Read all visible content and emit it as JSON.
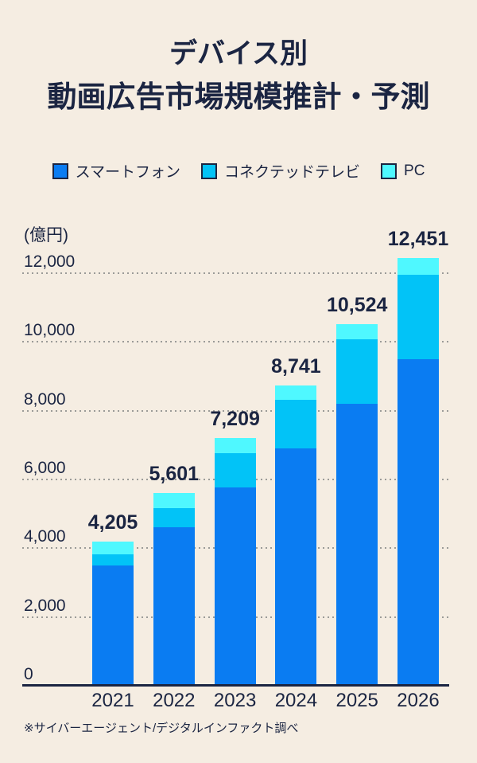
{
  "title": {
    "line1": "デバイス別",
    "line2": "動画広告市場規模推計・予測"
  },
  "footnote": "※サイバーエージェント/デジタルインファクト調べ",
  "colors": {
    "background": "#F5EDE2",
    "text": "#1B2542",
    "gridline": "#9B9B98",
    "smartphone": "#0A7CF2",
    "connected_tv": "#02C3F7",
    "pc": "#4FF8FF"
  },
  "chart_data": {
    "type": "bar",
    "stacked": true,
    "title": "デバイス別 動画広告市場規模推計・予測",
    "ylabel": "(億円)",
    "xlabel": "",
    "categories": [
      "2021",
      "2022",
      "2023",
      "2024",
      "2025",
      "2026"
    ],
    "totals": [
      4205,
      5601,
      7209,
      8741,
      10524,
      12451
    ],
    "total_labels": [
      "4,205",
      "5,601",
      "7,209",
      "8,741",
      "10,524",
      "12,451"
    ],
    "series": [
      {
        "name": "スマートフォン",
        "color": "#0A7CF2",
        "values": [
          3490,
          4610,
          5770,
          6900,
          8200,
          9490
        ]
      },
      {
        "name": "コネクテッドテレビ",
        "color": "#02C3F7",
        "values": [
          325,
          555,
          1000,
          1420,
          1882,
          2455
        ]
      },
      {
        "name": "PC",
        "color": "#4FF8FF",
        "values": [
          390,
          436,
          439,
          421,
          442,
          506
        ]
      }
    ],
    "series_values_estimated_from_pixels": true,
    "yticks": [
      0,
      2000,
      4000,
      6000,
      8000,
      10000,
      12000
    ],
    "ytick_labels": [
      "0",
      "2,000",
      "4,000",
      "6,000",
      "8,000",
      "10,000",
      "12,000"
    ],
    "ylim": [
      0,
      12500
    ],
    "grid": "dotted-horizontal",
    "legend_position": "top"
  }
}
